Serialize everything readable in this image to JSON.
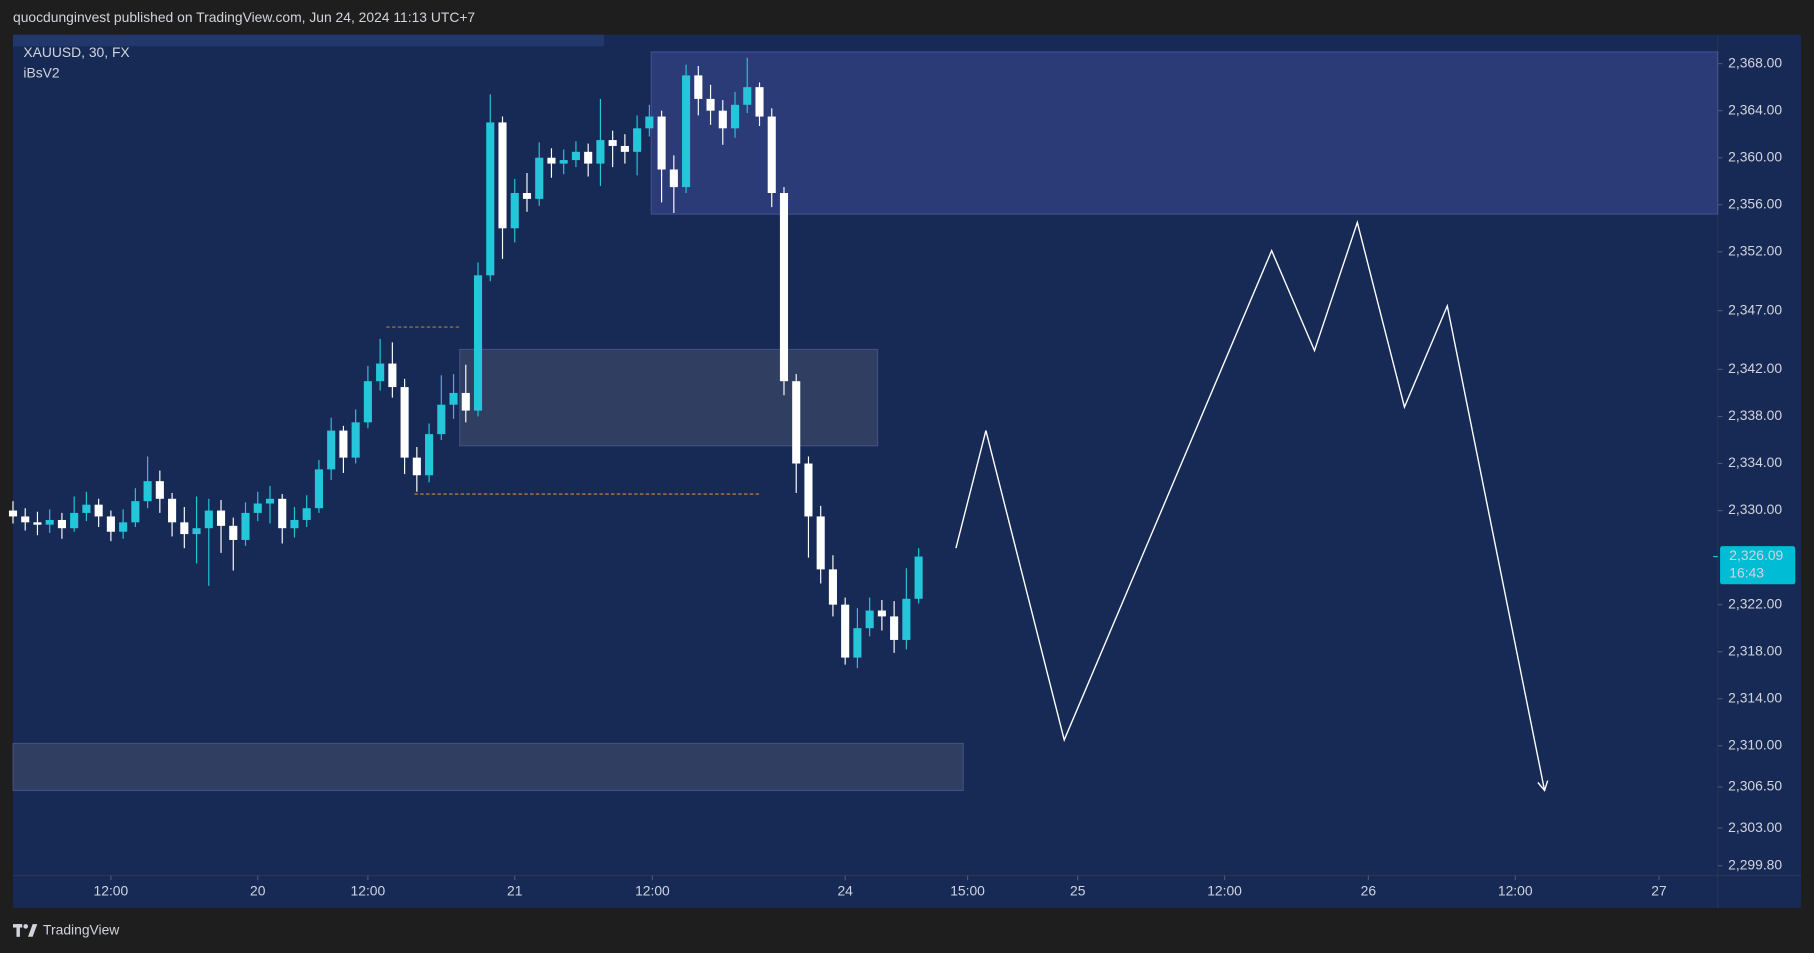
{
  "header": {
    "publisher": "quocdunginvest published on TradingView.com, Jun 24, 2024 11:13 UTC+7"
  },
  "footer": {
    "brand": "TradingView"
  },
  "chart_data": {
    "type": "candlestick",
    "symbol": "XAUUSD, 30, FX",
    "indicator": "iBsV2",
    "up_color": "#26c6da",
    "down_color": "#ffffff",
    "x": [
      0,
      2,
      4,
      6,
      8,
      10,
      12,
      14,
      16,
      18,
      20,
      22,
      24,
      26,
      28,
      30,
      32,
      34,
      36,
      38,
      40,
      42,
      44,
      46,
      48,
      50,
      52,
      54,
      56,
      58,
      60,
      62,
      64,
      66,
      68,
      70,
      72,
      74,
      76,
      78,
      80,
      82,
      84,
      86,
      88,
      90,
      92,
      94,
      96,
      98,
      100,
      102,
      104,
      106,
      108,
      110,
      112,
      114,
      116,
      118,
      120,
      122,
      124,
      126,
      128,
      130,
      132,
      134,
      136,
      138,
      140,
      142,
      144,
      146,
      148
    ],
    "open": [
      2330,
      2329.5,
      2329,
      2328.8,
      2329.2,
      2328.5,
      2329.8,
      2330.5,
      2329.5,
      2328.2,
      2329,
      2330.8,
      2332.5,
      2331,
      2329,
      2328,
      2328.5,
      2330,
      2328.7,
      2327.5,
      2329.8,
      2330.6,
      2331,
      2328.5,
      2329.2,
      2330.2,
      2333.5,
      2336.8,
      2334.5,
      2337.5,
      2341,
      2342.5,
      2340.5,
      2334.5,
      2333,
      2336.5,
      2339,
      2340,
      2338.5,
      2350,
      2363,
      2354,
      2357,
      2356.5,
      2360,
      2359.5,
      2359.8,
      2360.5,
      2359.5,
      2361.5,
      2361,
      2360.5,
      2362.5,
      2363.5,
      2359,
      2357.5,
      2367,
      2365,
      2364,
      2362.5,
      2364.5,
      2366,
      2363.5,
      2357,
      2341,
      2334,
      2329.5,
      2325,
      2322,
      2317.5,
      2320,
      2321.5,
      2321,
      2319,
      2322.5
    ],
    "high": [
      2330.8,
      2330.2,
      2329.9,
      2330.1,
      2329.8,
      2331.2,
      2331.6,
      2331,
      2330,
      2330.1,
      2331.9,
      2334.6,
      2333.4,
      2331.5,
      2330.3,
      2331.2,
      2331,
      2330.9,
      2329.4,
      2330.7,
      2331.6,
      2332.1,
      2331.4,
      2330.3,
      2331.3,
      2334.3,
      2337.9,
      2337.2,
      2338.6,
      2342.3,
      2344.6,
      2344.3,
      2341.2,
      2335.4,
      2337.4,
      2341.5,
      2341.6,
      2342.4,
      2351.1,
      2365.4,
      2363.5,
      2358.2,
      2358.7,
      2361.3,
      2360.8,
      2360.7,
      2361.4,
      2361.2,
      2365,
      2362.3,
      2362,
      2363.6,
      2364.5,
      2364,
      2360.2,
      2367.9,
      2367.8,
      2366.2,
      2364.9,
      2365.6,
      2368.5,
      2366.4,
      2364.2,
      2357.5,
      2341.6,
      2334.6,
      2330.4,
      2326.2,
      2322.6,
      2321.7,
      2322.6,
      2322.4,
      2322.3,
      2325.1,
      2326.8
    ],
    "low": [
      2328.9,
      2328.3,
      2327.9,
      2328.1,
      2327.6,
      2328.2,
      2329.1,
      2328.6,
      2327.4,
      2327.6,
      2328.6,
      2330.2,
      2329.8,
      2327.8,
      2326.8,
      2325.5,
      2323.6,
      2326.4,
      2324.9,
      2327,
      2329.1,
      2328.9,
      2327.2,
      2327.7,
      2328.6,
      2329.8,
      2332.6,
      2333.2,
      2334,
      2337,
      2340.2,
      2339.6,
      2333.1,
      2331.6,
      2332.4,
      2336,
      2337.8,
      2337.5,
      2338,
      2349.5,
      2351.4,
      2352.8,
      2355.4,
      2355.9,
      2358.3,
      2358.6,
      2359.2,
      2358.4,
      2357.6,
      2359.2,
      2359.5,
      2358.5,
      2361.8,
      2356.2,
      2355.3,
      2357,
      2363.6,
      2362.8,
      2361.1,
      2361.7,
      2363.8,
      2362.7,
      2355.8,
      2339.8,
      2331.5,
      2326,
      2323.8,
      2321,
      2316.9,
      2316.6,
      2319.3,
      2319.8,
      2317.9,
      2318.2,
      2322.1
    ],
    "close": [
      2329.5,
      2329,
      2328.8,
      2329.2,
      2328.5,
      2329.8,
      2330.5,
      2329.5,
      2328.2,
      2329,
      2330.8,
      2332.5,
      2331,
      2329,
      2328,
      2328.5,
      2330,
      2328.7,
      2327.5,
      2329.8,
      2330.6,
      2331,
      2328.5,
      2329.2,
      2330.2,
      2333.5,
      2336.8,
      2334.5,
      2337.5,
      2341,
      2342.5,
      2340.5,
      2334.5,
      2333,
      2336.5,
      2339,
      2340,
      2338.5,
      2350,
      2363,
      2354,
      2357,
      2356.5,
      2360,
      2359.5,
      2359.8,
      2360.5,
      2359.5,
      2361.5,
      2361,
      2360.5,
      2362.5,
      2363.5,
      2359,
      2357.5,
      2367,
      2365,
      2364,
      2362.5,
      2364.5,
      2366,
      2363.5,
      2357,
      2341,
      2334,
      2329.5,
      2325,
      2322,
      2317.5,
      2320,
      2321.5,
      2321,
      2319,
      2322.5,
      2326.09
    ],
    "last_price": {
      "value": 2326.09,
      "label": "2,326.09"
    },
    "countdown": "16:43",
    "zones": [
      {
        "x": [
          104.3,
          278.6
        ],
        "y": [
          2355.2,
          2369
        ],
        "color": "rgba(58,72,150,0.55)"
      },
      {
        "x": [
          73,
          141.3
        ],
        "y": [
          2335.5,
          2343.7
        ],
        "color": "rgba(92,100,120,0.35)"
      },
      {
        "x": [
          0,
          155.3
        ],
        "y": [
          2306.2,
          2310.2
        ],
        "color": "rgba(92,100,120,0.35)"
      }
    ],
    "levels": [
      {
        "x": [
          61,
          73
        ],
        "value": 2345.6,
        "color": "#b07a3a"
      },
      {
        "x": [
          65.6,
          122.3
        ],
        "value": 2331.4,
        "color": "#d08a3a"
      }
    ],
    "projection": {
      "x": [
        154.1,
        159,
        171.8,
        205.7,
        212.7,
        219.7,
        227.4,
        234.4,
        250.3
      ],
      "values": [
        2326.8,
        2336.8,
        2310.5,
        2352.1,
        2343.6,
        2354.5,
        2338.8,
        2347.4,
        2306.2
      ],
      "color": "#ffffff"
    },
    "xlim": [
      0,
      278.6
    ],
    "ylim": [
      2298.97,
      2370.46
    ],
    "xticks": [
      {
        "value": 16,
        "label": "12:00"
      },
      {
        "value": 40,
        "label": "20"
      },
      {
        "value": 58,
        "label": "12:00"
      },
      {
        "value": 82,
        "label": "21"
      },
      {
        "value": 104.5,
        "label": "12:00"
      },
      {
        "value": 136,
        "label": "24"
      },
      {
        "value": 156,
        "label": "15:00"
      },
      {
        "value": 174,
        "label": "25"
      },
      {
        "value": 198,
        "label": "12:00"
      },
      {
        "value": 221.5,
        "label": "26"
      },
      {
        "value": 245.5,
        "label": "12:00"
      },
      {
        "value": 269,
        "label": "27"
      }
    ],
    "yticks": [
      {
        "value": 2368,
        "label": "2,368.00"
      },
      {
        "value": 2364,
        "label": "2,364.00"
      },
      {
        "value": 2360,
        "label": "2,360.00"
      },
      {
        "value": 2356,
        "label": "2,356.00"
      },
      {
        "value": 2352,
        "label": "2,352.00"
      },
      {
        "value": 2347,
        "label": "2,347.00"
      },
      {
        "value": 2342,
        "label": "2,342.00"
      },
      {
        "value": 2338,
        "label": "2,338.00"
      },
      {
        "value": 2334,
        "label": "2,334.00"
      },
      {
        "value": 2330,
        "label": "2,330.00"
      },
      {
        "value": 2322,
        "label": "2,322.00"
      },
      {
        "value": 2318,
        "label": "2,318.00"
      },
      {
        "value": 2314,
        "label": "2,314.00"
      },
      {
        "value": 2310,
        "label": "2,310.00"
      },
      {
        "value": 2306.5,
        "label": "2,306.50"
      },
      {
        "value": 2303,
        "label": "2,303.00"
      },
      {
        "value": 2299.8,
        "label": "2,299.80"
      }
    ]
  }
}
